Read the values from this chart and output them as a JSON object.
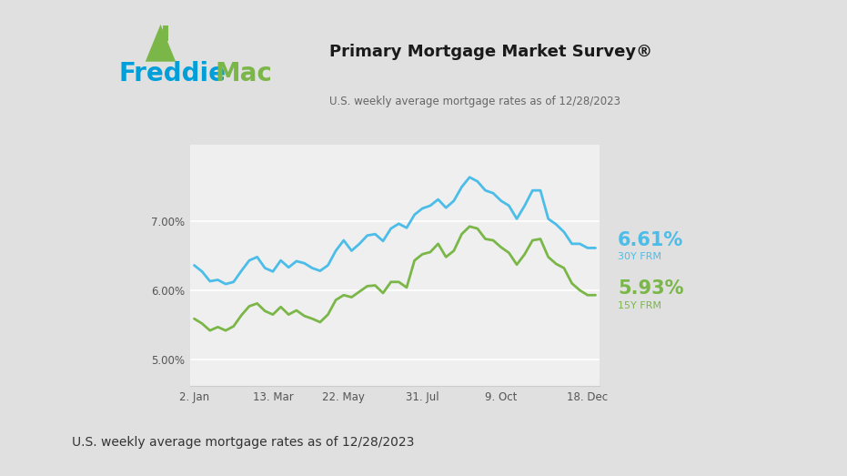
{
  "title_main": "Primary Mortgage Market Survey®",
  "title_sub": "U.S. weekly average mortgage rates as of 12/28/2023",
  "footer_text": "U.S. weekly average mortgage rates as of 12/28/2023",
  "rate_30y": "6.61%",
  "rate_15y": "5.93%",
  "label_30y": "30Y FRM",
  "label_15y": "15Y FRM",
  "color_30y": "#4BBDE8",
  "color_15y": "#7AB648",
  "color_freddie_blue": "#009FDA",
  "color_freddie_green": "#7AB648",
  "yticks": [
    5.0,
    6.0,
    7.0
  ],
  "ylim": [
    4.62,
    8.1
  ],
  "xtick_labels": [
    "2. Jan",
    "13. Mar",
    "22. May",
    "31. Jul",
    "9. Oct",
    "18. Dec"
  ],
  "outer_bg": "#E0E0E0",
  "plot_bg": "#EFEFEF",
  "card_bg": "#FFFFFF",
  "x_data": [
    0,
    1,
    2,
    3,
    4,
    5,
    6,
    7,
    8,
    9,
    10,
    11,
    12,
    13,
    14,
    15,
    16,
    17,
    18,
    19,
    20,
    21,
    22,
    23,
    24,
    25,
    26,
    27,
    28,
    29,
    30,
    31,
    32,
    33,
    34,
    35,
    36,
    37,
    38,
    39,
    40,
    41,
    42,
    43,
    44,
    45,
    46,
    47,
    48,
    49,
    50,
    51
  ],
  "y_30y": [
    6.36,
    6.27,
    6.13,
    6.15,
    6.09,
    6.12,
    6.28,
    6.43,
    6.48,
    6.32,
    6.27,
    6.43,
    6.33,
    6.42,
    6.39,
    6.32,
    6.28,
    6.36,
    6.57,
    6.72,
    6.57,
    6.67,
    6.79,
    6.81,
    6.71,
    6.89,
    6.96,
    6.9,
    7.09,
    7.18,
    7.22,
    7.31,
    7.19,
    7.29,
    7.49,
    7.63,
    7.57,
    7.44,
    7.4,
    7.29,
    7.22,
    7.03,
    7.22,
    7.44,
    7.44,
    7.03,
    6.95,
    6.84,
    6.67,
    6.67,
    6.61,
    6.61
  ],
  "y_15y": [
    5.59,
    5.52,
    5.42,
    5.47,
    5.42,
    5.48,
    5.64,
    5.77,
    5.81,
    5.7,
    5.65,
    5.76,
    5.65,
    5.71,
    5.63,
    5.59,
    5.54,
    5.65,
    5.86,
    5.93,
    5.9,
    5.98,
    6.06,
    6.07,
    5.96,
    6.12,
    6.12,
    6.04,
    6.43,
    6.52,
    6.55,
    6.67,
    6.48,
    6.57,
    6.81,
    6.92,
    6.89,
    6.74,
    6.72,
    6.62,
    6.54,
    6.37,
    6.52,
    6.72,
    6.74,
    6.48,
    6.38,
    6.32,
    6.1,
    6.0,
    5.93,
    5.93
  ],
  "xtick_positions": [
    0,
    10,
    19,
    29,
    39,
    50
  ]
}
